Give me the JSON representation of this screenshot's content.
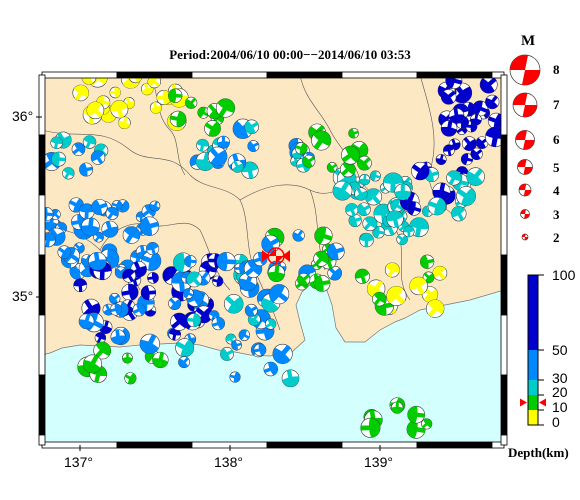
{
  "title": "Period:2004/06/10 00:00−−2014/06/10 03:53",
  "axes": {
    "lat_labels": [
      "36°",
      "35°"
    ],
    "lon_labels": [
      "137°",
      "138°",
      "139°"
    ]
  },
  "magnitude_legend": {
    "title": "M",
    "labels": [
      "8",
      "7",
      "6",
      "5",
      "4",
      "3",
      "2"
    ]
  },
  "depth_legend": {
    "title": "Depth(km)",
    "labels": [
      "100",
      "50",
      "30",
      "20",
      "10",
      "0"
    ],
    "colors": [
      "#ffff00",
      "#00cc00",
      "#00cccc",
      "#0088ff",
      "#0000cc"
    ],
    "highlight_depth_km": 15
  },
  "colors": {
    "land": "#fde8c4",
    "sea": "#d4ffff",
    "highlight": "#ff0000"
  },
  "map_extent": {
    "lon": [
      136.8,
      139.8
    ],
    "lat": [
      34.2,
      36.2
    ]
  }
}
